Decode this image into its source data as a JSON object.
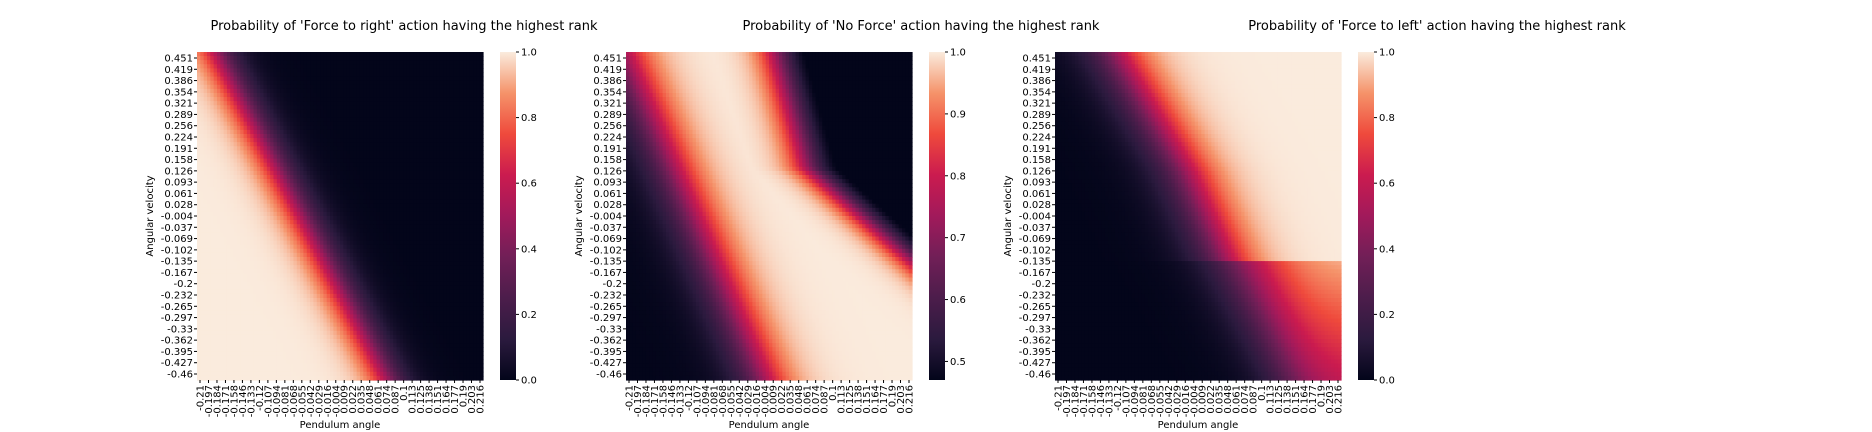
{
  "chart_data": [
    {
      "type": "heatmap",
      "title": "Probability of 'Force to right' action having the highest rank",
      "xlabel": "Pendulum angle",
      "ylabel": "Angular velocity",
      "x_ticks": [
        "-0.21",
        "-0.197",
        "-0.184",
        "-0.171",
        "-0.158",
        "-0.146",
        "-0.133",
        "-0.12",
        "-0.107",
        "-0.094",
        "-0.081",
        "-0.068",
        "-0.055",
        "-0.042",
        "-0.029",
        "-0.016",
        "-0.004",
        "0.009",
        "0.022",
        "0.035",
        "0.048",
        "0.061",
        "0.074",
        "0.087",
        "0.1",
        "0.113",
        "0.125",
        "0.138",
        "0.151",
        "0.164",
        "0.177",
        "0.19",
        "0.203",
        "0.216"
      ],
      "y_ticks": [
        "0.451",
        "0.419",
        "0.386",
        "0.354",
        "0.321",
        "0.289",
        "0.256",
        "0.224",
        "0.191",
        "0.158",
        "0.126",
        "0.093",
        "0.061",
        "0.028",
        "-0.004",
        "-0.037",
        "-0.069",
        "-0.102",
        "-0.135",
        "-0.167",
        "-0.2",
        "-0.232",
        "-0.265",
        "-0.297",
        "-0.33",
        "-0.362",
        "-0.395",
        "-0.427",
        "-0.46"
      ],
      "colorbar": {
        "min": 0.0,
        "max": 1.0,
        "ticks": [
          "0.0",
          "0.2",
          "0.4",
          "0.6",
          "0.8",
          "1.0"
        ]
      },
      "colormap": "rocket",
      "x_range": [
        -0.21,
        0.216
      ],
      "y_range": [
        -0.46,
        0.451
      ]
    },
    {
      "type": "heatmap",
      "title": "Probability of 'No Force' action having the highest rank",
      "xlabel": "Pendulum angle",
      "ylabel": "Angular velocity",
      "x_ticks": [
        "-0.21",
        "-0.197",
        "-0.184",
        "-0.171",
        "-0.158",
        "-0.146",
        "-0.133",
        "-0.12",
        "-0.107",
        "-0.094",
        "-0.081",
        "-0.068",
        "-0.055",
        "-0.042",
        "-0.029",
        "-0.016",
        "-0.004",
        "0.009",
        "0.022",
        "0.035",
        "0.048",
        "0.061",
        "0.074",
        "0.087",
        "0.1",
        "0.113",
        "0.125",
        "0.138",
        "0.151",
        "0.164",
        "0.177",
        "0.19",
        "0.203",
        "0.216"
      ],
      "y_ticks": [
        "0.451",
        "0.419",
        "0.386",
        "0.354",
        "0.321",
        "0.289",
        "0.256",
        "0.224",
        "0.191",
        "0.158",
        "0.126",
        "0.093",
        "0.061",
        "0.028",
        "-0.004",
        "-0.037",
        "-0.069",
        "-0.102",
        "-0.135",
        "-0.167",
        "-0.2",
        "-0.232",
        "-0.265",
        "-0.297",
        "-0.33",
        "-0.362",
        "-0.395",
        "-0.427",
        "-0.46"
      ],
      "colorbar": {
        "min": 0.47,
        "max": 1.0,
        "ticks": [
          "0.5",
          "0.6",
          "0.7",
          "0.8",
          "0.9",
          "1.0"
        ]
      },
      "colormap": "rocket",
      "x_range": [
        -0.21,
        0.216
      ],
      "y_range": [
        -0.46,
        0.451
      ]
    },
    {
      "type": "heatmap",
      "title": "Probability of 'Force to left' action having the highest rank",
      "xlabel": "Pendulum angle",
      "ylabel": "Angular velocity",
      "x_ticks": [
        "-0.21",
        "-0.197",
        "-0.184",
        "-0.171",
        "-0.158",
        "-0.146",
        "-0.133",
        "-0.12",
        "-0.107",
        "-0.094",
        "-0.081",
        "-0.068",
        "-0.055",
        "-0.042",
        "-0.029",
        "-0.016",
        "-0.004",
        "0.009",
        "0.022",
        "0.035",
        "0.048",
        "0.061",
        "0.074",
        "0.087",
        "0.1",
        "0.113",
        "0.125",
        "0.138",
        "0.151",
        "0.164",
        "0.177",
        "0.19",
        "0.203",
        "0.216"
      ],
      "y_ticks": [
        "0.451",
        "0.419",
        "0.386",
        "0.354",
        "0.321",
        "0.289",
        "0.256",
        "0.224",
        "0.191",
        "0.158",
        "0.126",
        "0.093",
        "0.061",
        "0.028",
        "-0.004",
        "-0.037",
        "-0.069",
        "-0.102",
        "-0.135",
        "-0.167",
        "-0.2",
        "-0.232",
        "-0.265",
        "-0.297",
        "-0.33",
        "-0.362",
        "-0.395",
        "-0.427",
        "-0.46"
      ],
      "colorbar": {
        "min": 0.0,
        "max": 1.0,
        "ticks": [
          "0.0",
          "0.2",
          "0.4",
          "0.6",
          "0.8",
          "1.0"
        ]
      },
      "colormap": "rocket",
      "x_range": [
        -0.21,
        0.216
      ],
      "y_range": [
        -0.46,
        0.451
      ]
    }
  ]
}
